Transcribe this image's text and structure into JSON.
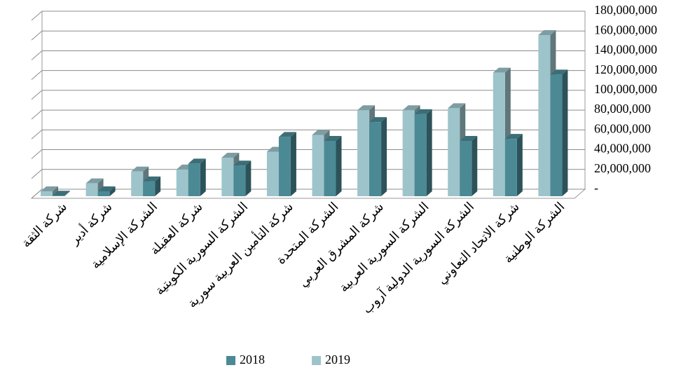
{
  "chart_data": {
    "type": "bar3d",
    "categories": [
      "شركة الثقة",
      "شركة أدير",
      "الشركة الإسلامية",
      "شركة العقيلة",
      "الشركة السورية الكويتية",
      "شركة التأمين العربية سورية",
      "الشركة المتحدة",
      "شركة المشرق العربي",
      "الشركة السورية العربية",
      "الشركة السورية الدولية آروب",
      "شركة الاتحاد التعاوني",
      "الشركة الوطنية"
    ],
    "series": [
      {
        "name": "2019",
        "color": "#9ec4cb",
        "values": [
          5000000,
          13000000,
          25000000,
          27000000,
          39000000,
          45000000,
          62000000,
          87000000,
          87000000,
          89000000,
          125000000,
          163000000
        ]
      },
      {
        "name": "2018",
        "color": "#4b8995",
        "values": [
          500000,
          5000000,
          15000000,
          33000000,
          31000000,
          60000000,
          56000000,
          75000000,
          83000000,
          56000000,
          58000000,
          123000000
        ]
      }
    ],
    "legend_order": [
      1,
      0
    ],
    "ylim": [
      0,
      180000000
    ],
    "yticks": [
      {
        "value": 0,
        "label": "-"
      },
      {
        "value": 20000000,
        "label": "20,000,000"
      },
      {
        "value": 40000000,
        "label": "40,000,000"
      },
      {
        "value": 60000000,
        "label": "60,000,000"
      },
      {
        "value": 80000000,
        "label": "80,000,000"
      },
      {
        "value": 100000000,
        "label": "100,000,000"
      },
      {
        "value": 120000000,
        "label": "120,000,000"
      },
      {
        "value": 140000000,
        "label": "140,000,000"
      },
      {
        "value": 160000000,
        "label": "160,000,000"
      },
      {
        "value": 180000000,
        "label": "180,000,000"
      }
    ],
    "grid": true
  }
}
